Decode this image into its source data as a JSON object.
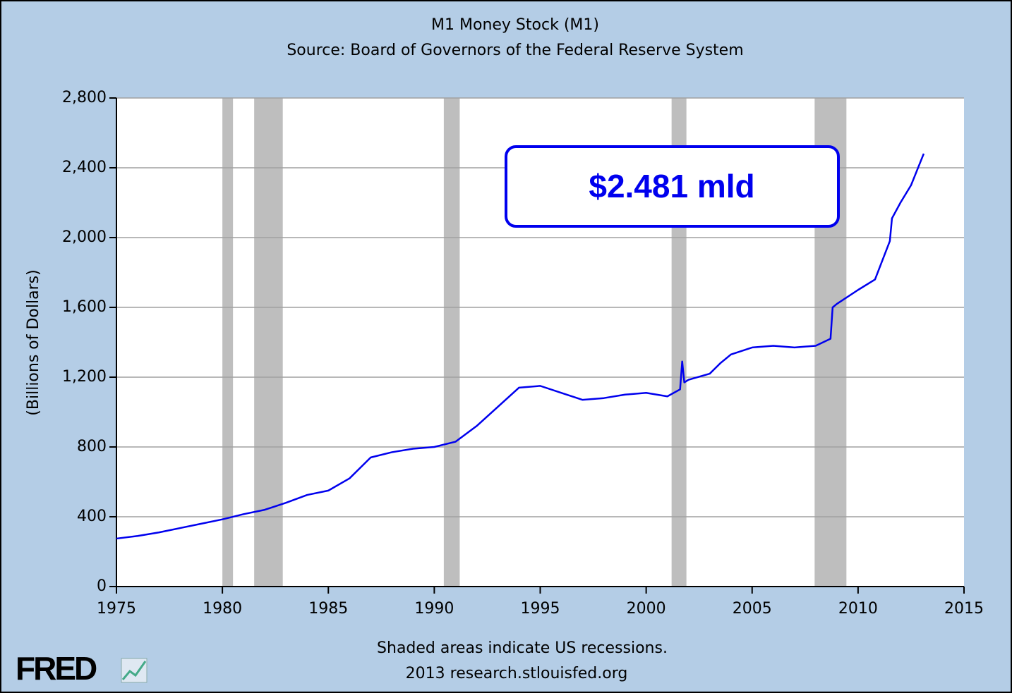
{
  "chart_data": {
    "type": "line",
    "title": "M1 Money Stock (M1)",
    "subtitle": "Source: Board of Governors of the Federal Reserve System",
    "y_label": "(Billions of Dollars)",
    "annotation": "$2.481 mld",
    "footer": [
      "Shaded areas indicate US recessions.",
      "2013 research.stlouisfed.org"
    ],
    "logo": "FRED",
    "x": [
      1975,
      1976,
      1977,
      1978,
      1979,
      1980,
      1981,
      1982,
      1983,
      1984,
      1985,
      1986,
      1987,
      1988,
      1989,
      1990,
      1991,
      1992,
      1993,
      1994,
      1995,
      1996,
      1997,
      1998,
      1999,
      2000,
      2001,
      2001.6,
      2001.7,
      2001.8,
      2002,
      2003,
      2003.5,
      2004,
      2005,
      2006,
      2007,
      2008,
      2008.7,
      2008.8,
      2009,
      2010,
      2010.8,
      2011.5,
      2011.6,
      2012,
      2012.5,
      2013.1
    ],
    "series": [
      {
        "name": "M1",
        "color": "#0000ee",
        "values": [
          275,
          290,
          310,
          335,
          360,
          385,
          415,
          440,
          480,
          525,
          550,
          620,
          740,
          770,
          790,
          800,
          830,
          920,
          1030,
          1140,
          1150,
          1110,
          1070,
          1080,
          1100,
          1110,
          1090,
          1130,
          1290,
          1170,
          1185,
          1220,
          1280,
          1330,
          1370,
          1380,
          1370,
          1380,
          1420,
          1600,
          1620,
          1700,
          1760,
          1980,
          2110,
          2200,
          2300,
          2481
        ]
      }
    ],
    "recessions": [
      [
        1980.0,
        1980.5
      ],
      [
        1981.5,
        1982.85
      ],
      [
        1990.45,
        1991.2
      ],
      [
        2001.2,
        2001.9
      ],
      [
        2007.95,
        2009.45
      ]
    ],
    "recession_color": "#bebebe",
    "xlim": [
      1975,
      2015
    ],
    "xticks": [
      1975,
      1980,
      1985,
      1990,
      1995,
      2000,
      2005,
      2010,
      2015
    ],
    "ylim": [
      0,
      2800
    ],
    "yticks": [
      0,
      400,
      800,
      {
        "value": 1200,
        "label": "1,200"
      },
      {
        "value": 1600,
        "label": "1,600"
      },
      {
        "value": 2000,
        "label": "2,000"
      },
      {
        "value": 2400,
        "label": "2,400"
      },
      {
        "value": 2800,
        "label": "2,800"
      }
    ],
    "grid": true
  }
}
